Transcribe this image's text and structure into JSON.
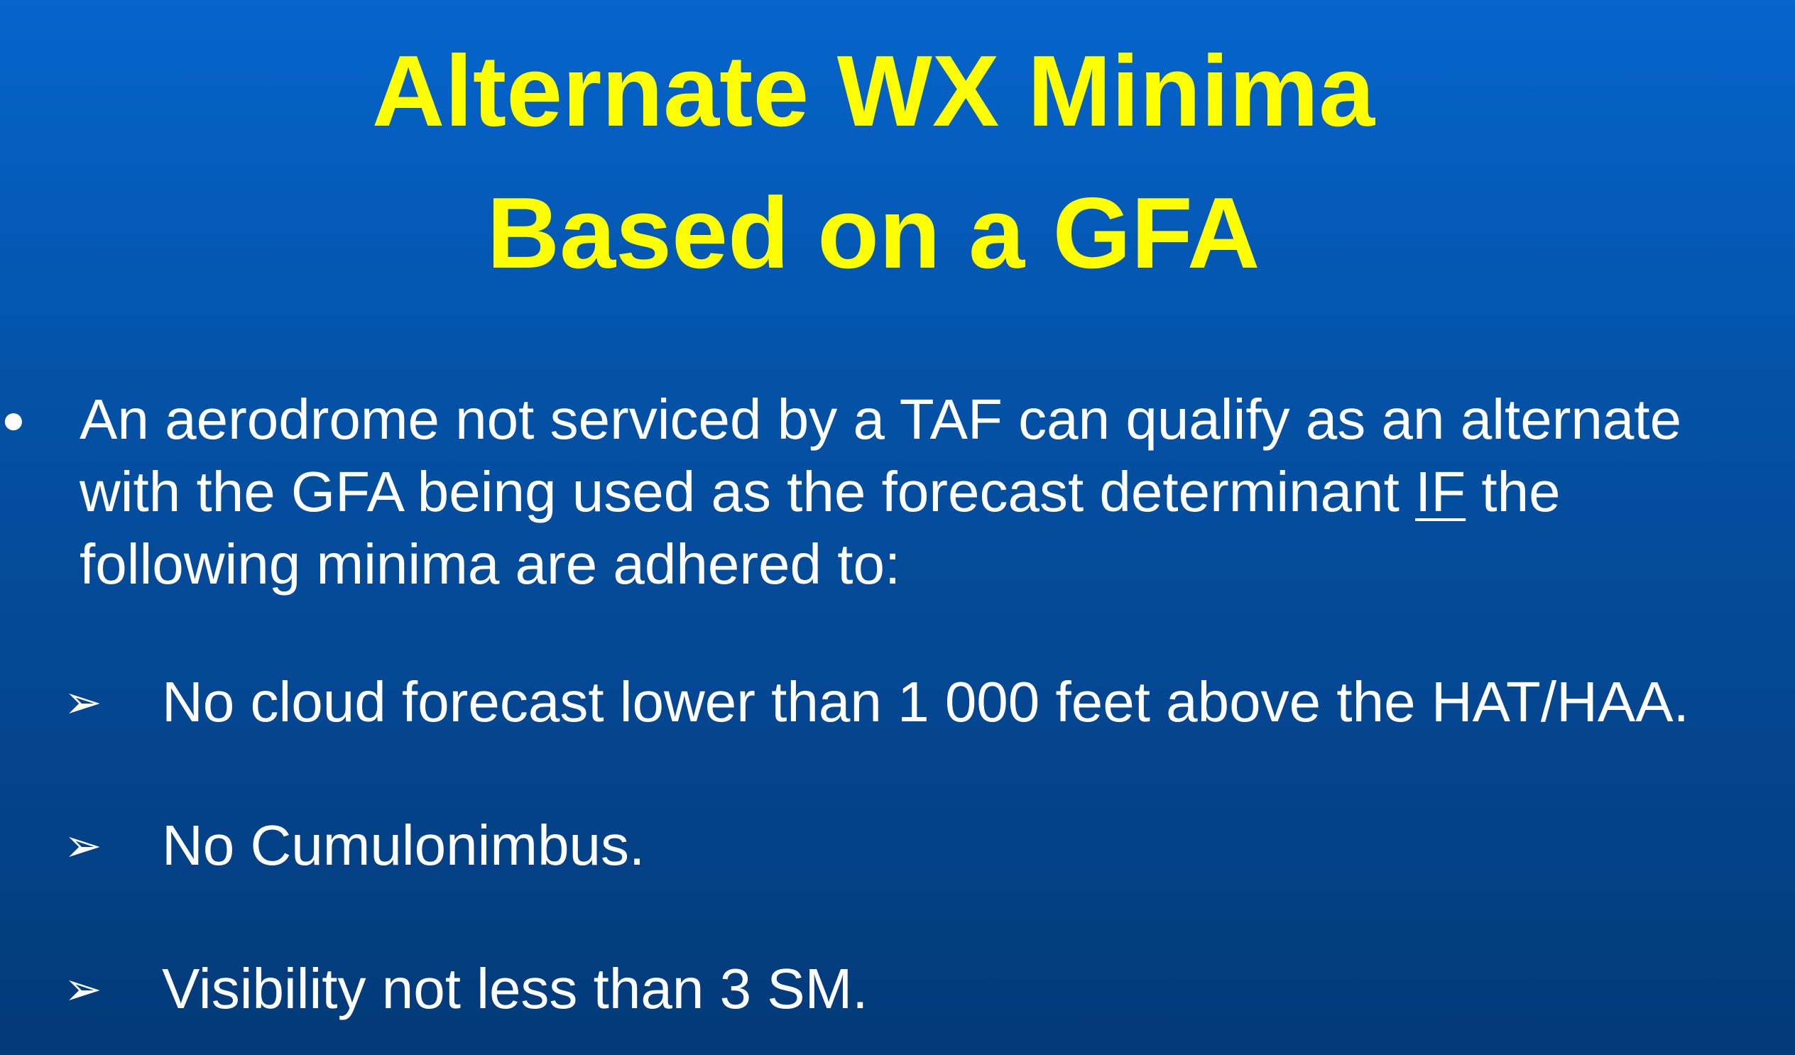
{
  "slide": {
    "title_line1": "Alternate WX Minima",
    "title_line2": "Based on a GFA",
    "bullet": {
      "marker": "●",
      "line1": "An aerodrome not serviced by a TAF can qualify as an alternate",
      "line2_before": "with the GFA being used as the forecast determinant ",
      "line2_underlined": "IF",
      "line2_after": " the",
      "line3": "following minima are adhered to:"
    },
    "sub_marker": "➢",
    "sub_items": [
      "No cloud forecast lower than 1 000 feet above the HAT/HAA.",
      "No Cumulonimbus.",
      "Visibility not less than 3 SM."
    ]
  },
  "colors": {
    "title": "#ffff00",
    "text": "#ffffff",
    "background_top": "#0565cc",
    "background_bottom": "#033a78"
  }
}
